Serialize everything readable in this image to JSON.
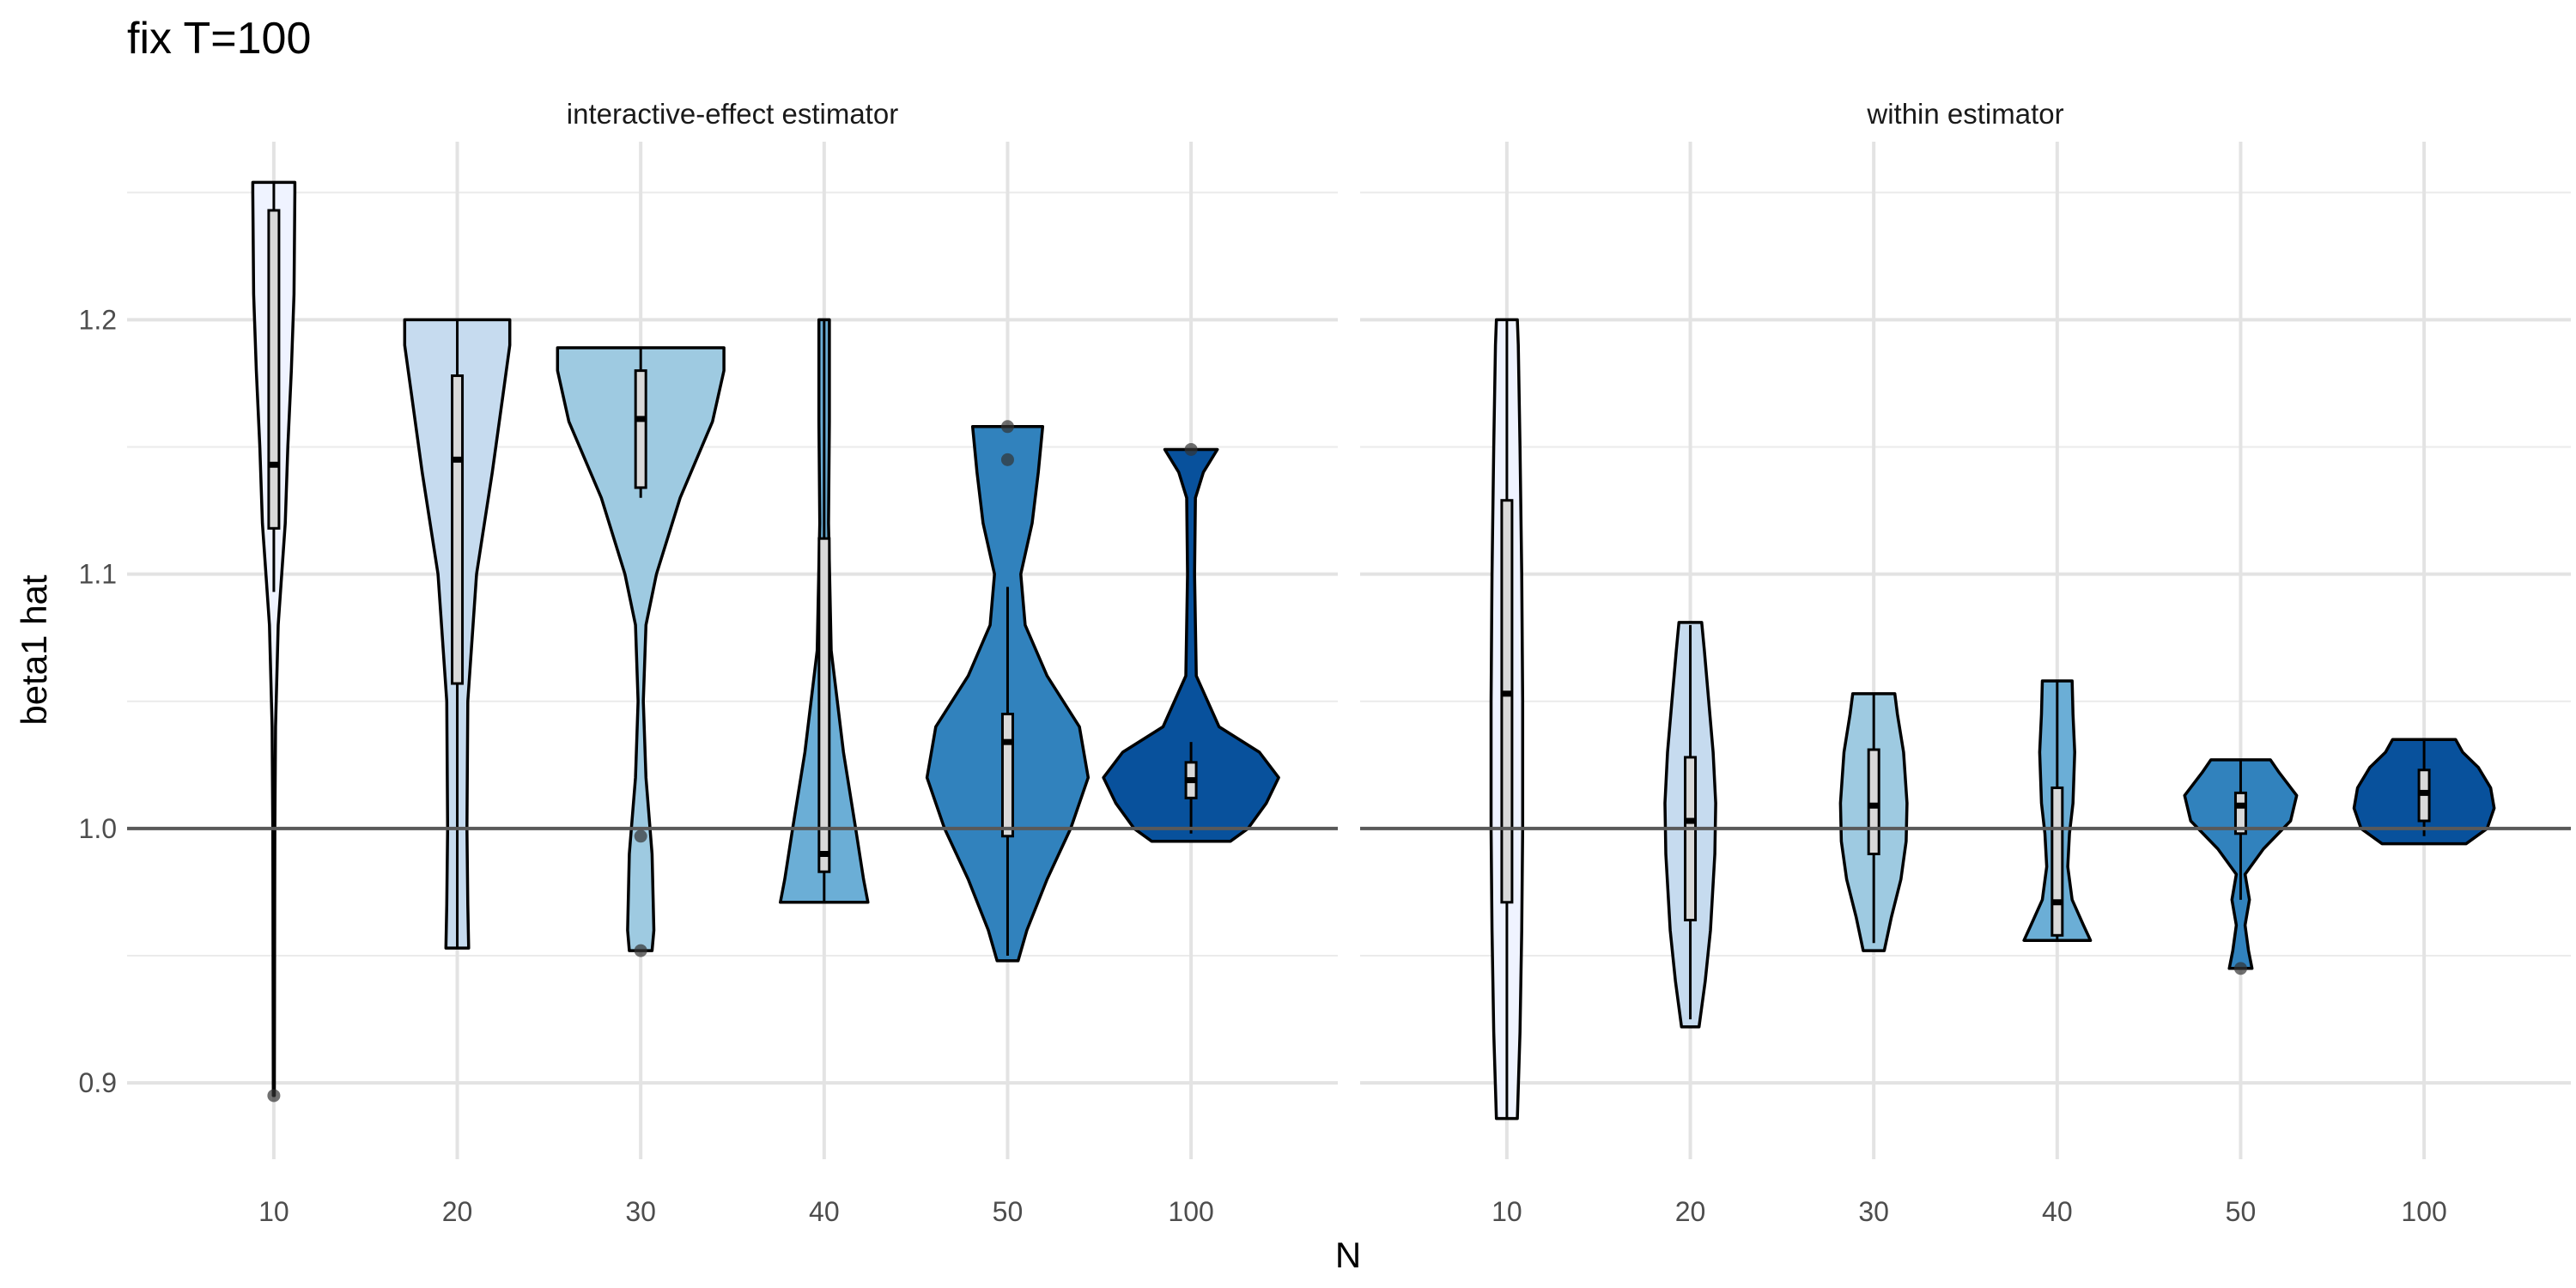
{
  "chart_data": {
    "type": "violin",
    "title": "fix T=100",
    "xlabel": "N",
    "ylabel": "beta1 hat",
    "categories": [
      "10",
      "20",
      "30",
      "40",
      "50",
      "100"
    ],
    "ylim": [
      0.87,
      1.27
    ],
    "yticks": [
      0.9,
      1.0,
      1.1,
      1.2
    ],
    "reference_line": 1.0,
    "grid": true,
    "fill_colors": [
      "#eff3ff",
      "#c6dbef",
      "#9ecae1",
      "#6baed6",
      "#3182bd",
      "#08519c"
    ],
    "panels": [
      {
        "label": "interactive-effect estimator",
        "groups": [
          {
            "N": "10",
            "min": 0.895,
            "max": 1.254,
            "q1": 1.118,
            "median": 1.143,
            "q3": 1.243,
            "whisker_low": 1.093,
            "whisker_high": 1.254,
            "outliers": [
              0.895
            ],
            "density": [
              [
                0.895,
                0.006
              ],
              [
                0.93,
                0.008
              ],
              [
                0.97,
                0.01
              ],
              [
                1.0,
                0.012
              ],
              [
                1.04,
                0.02
              ],
              [
                1.08,
                0.05
              ],
              [
                1.1,
                0.09
              ],
              [
                1.12,
                0.13
              ],
              [
                1.15,
                0.16
              ],
              [
                1.18,
                0.2
              ],
              [
                1.21,
                0.23
              ],
              [
                1.25,
                0.24
              ],
              [
                1.254,
                0.24
              ]
            ]
          },
          {
            "N": "20",
            "min": 0.953,
            "max": 1.2,
            "q1": 1.057,
            "median": 1.145,
            "q3": 1.178,
            "whisker_low": 0.953,
            "whisker_high": 1.2,
            "outliers": [],
            "density": [
              [
                0.953,
                0.13
              ],
              [
                0.97,
                0.12
              ],
              [
                1.0,
                0.11
              ],
              [
                1.05,
                0.12
              ],
              [
                1.1,
                0.22
              ],
              [
                1.14,
                0.4
              ],
              [
                1.17,
                0.52
              ],
              [
                1.19,
                0.6
              ],
              [
                1.2,
                0.6
              ]
            ]
          },
          {
            "N": "30",
            "min": 0.952,
            "max": 1.189,
            "q1": 1.134,
            "median": 1.161,
            "q3": 1.18,
            "whisker_low": 1.13,
            "whisker_high": 1.189,
            "outliers": [
              0.952,
              0.997
            ],
            "density": [
              [
                0.952,
                0.13
              ],
              [
                0.96,
                0.15
              ],
              [
                0.99,
                0.13
              ],
              [
                1.02,
                0.06
              ],
              [
                1.05,
                0.03
              ],
              [
                1.08,
                0.06
              ],
              [
                1.1,
                0.18
              ],
              [
                1.13,
                0.45
              ],
              [
                1.16,
                0.82
              ],
              [
                1.18,
                0.95
              ],
              [
                1.189,
                0.95
              ]
            ]
          },
          {
            "N": "40",
            "min": 0.971,
            "max": 1.2,
            "q1": 0.983,
            "median": 0.99,
            "q3": 1.114,
            "whisker_low": 0.971,
            "whisker_high": 1.2,
            "outliers": [],
            "density": [
              [
                0.971,
                0.5
              ],
              [
                0.98,
                0.45
              ],
              [
                1.0,
                0.36
              ],
              [
                1.03,
                0.22
              ],
              [
                1.07,
                0.08
              ],
              [
                1.12,
                0.05
              ],
              [
                1.16,
                0.06
              ],
              [
                1.19,
                0.06
              ],
              [
                1.2,
                0.06
              ]
            ]
          },
          {
            "N": "50",
            "min": 0.948,
            "max": 1.158,
            "q1": 0.997,
            "median": 1.034,
            "q3": 1.045,
            "whisker_low": 0.95,
            "whisker_high": 1.095,
            "outliers": [
              1.145,
              1.158
            ],
            "density": [
              [
                0.948,
                0.12
              ],
              [
                0.96,
                0.22
              ],
              [
                0.98,
                0.45
              ],
              [
                1.0,
                0.72
              ],
              [
                1.02,
                0.92
              ],
              [
                1.04,
                0.82
              ],
              [
                1.06,
                0.45
              ],
              [
                1.08,
                0.2
              ],
              [
                1.1,
                0.15
              ],
              [
                1.12,
                0.28
              ],
              [
                1.14,
                0.35
              ],
              [
                1.158,
                0.4
              ]
            ]
          },
          {
            "N": "100",
            "min": 0.995,
            "max": 1.149,
            "q1": 1.012,
            "median": 1.019,
            "q3": 1.026,
            "whisker_low": 0.998,
            "whisker_high": 1.034,
            "outliers": [
              1.149
            ],
            "density": [
              [
                0.995,
                0.45
              ],
              [
                1.0,
                0.65
              ],
              [
                1.01,
                0.86
              ],
              [
                1.02,
                1.0
              ],
              [
                1.03,
                0.78
              ],
              [
                1.04,
                0.32
              ],
              [
                1.06,
                0.06
              ],
              [
                1.1,
                0.04
              ],
              [
                1.13,
                0.05
              ],
              [
                1.14,
                0.14
              ],
              [
                1.149,
                0.3
              ]
            ]
          }
        ]
      },
      {
        "label": "within estimator",
        "groups": [
          {
            "N": "10",
            "min": 0.886,
            "max": 1.2,
            "q1": 0.971,
            "median": 1.053,
            "q3": 1.129,
            "whisker_low": 0.886,
            "whisker_high": 1.2,
            "outliers": [],
            "density": [
              [
                0.886,
                0.12
              ],
              [
                0.92,
                0.15
              ],
              [
                0.96,
                0.17
              ],
              [
                1.0,
                0.18
              ],
              [
                1.05,
                0.18
              ],
              [
                1.1,
                0.17
              ],
              [
                1.15,
                0.15
              ],
              [
                1.19,
                0.13
              ],
              [
                1.2,
                0.12
              ]
            ]
          },
          {
            "N": "20",
            "min": 0.922,
            "max": 1.081,
            "q1": 0.964,
            "median": 1.003,
            "q3": 1.028,
            "whisker_low": 0.925,
            "whisker_high": 1.08,
            "outliers": [],
            "density": [
              [
                0.922,
                0.1
              ],
              [
                0.94,
                0.17
              ],
              [
                0.96,
                0.23
              ],
              [
                0.99,
                0.28
              ],
              [
                1.01,
                0.29
              ],
              [
                1.03,
                0.26
              ],
              [
                1.05,
                0.21
              ],
              [
                1.07,
                0.16
              ],
              [
                1.081,
                0.13
              ]
            ]
          },
          {
            "N": "30",
            "min": 0.952,
            "max": 1.053,
            "q1": 0.99,
            "median": 1.009,
            "q3": 1.031,
            "whisker_low": 0.955,
            "whisker_high": 1.053,
            "outliers": [],
            "density": [
              [
                0.952,
                0.12
              ],
              [
                0.965,
                0.2
              ],
              [
                0.98,
                0.31
              ],
              [
                0.995,
                0.37
              ],
              [
                1.01,
                0.38
              ],
              [
                1.03,
                0.34
              ],
              [
                1.045,
                0.27
              ],
              [
                1.053,
                0.24
              ]
            ]
          },
          {
            "N": "40",
            "min": 0.956,
            "max": 1.058,
            "q1": 0.958,
            "median": 0.971,
            "q3": 1.016,
            "whisker_low": 0.956,
            "whisker_high": 1.058,
            "outliers": [],
            "density": [
              [
                0.956,
                0.38
              ],
              [
                0.962,
                0.3
              ],
              [
                0.972,
                0.17
              ],
              [
                0.985,
                0.12
              ],
              [
                0.998,
                0.14
              ],
              [
                1.01,
                0.18
              ],
              [
                1.03,
                0.2
              ],
              [
                1.045,
                0.18
              ],
              [
                1.058,
                0.17
              ]
            ]
          },
          {
            "N": "50",
            "min": 0.945,
            "max": 1.027,
            "q1": 0.998,
            "median": 1.009,
            "q3": 1.014,
            "whisker_low": 0.972,
            "whisker_high": 1.027,
            "outliers": [
              0.945
            ],
            "density": [
              [
                0.945,
                0.13
              ],
              [
                0.952,
                0.09
              ],
              [
                0.962,
                0.05
              ],
              [
                0.972,
                0.1
              ],
              [
                0.982,
                0.05
              ],
              [
                0.992,
                0.26
              ],
              [
                1.003,
                0.57
              ],
              [
                1.013,
                0.64
              ],
              [
                1.022,
                0.44
              ],
              [
                1.027,
                0.34
              ]
            ]
          },
          {
            "N": "100",
            "min": 0.994,
            "max": 1.035,
            "q1": 1.003,
            "median": 1.014,
            "q3": 1.023,
            "whisker_low": 0.997,
            "whisker_high": 1.035,
            "outliers": [],
            "density": [
              [
                0.994,
                0.48
              ],
              [
                1.0,
                0.72
              ],
              [
                1.008,
                0.8
              ],
              [
                1.016,
                0.76
              ],
              [
                1.024,
                0.62
              ],
              [
                1.03,
                0.44
              ],
              [
                1.035,
                0.36
              ]
            ]
          }
        ]
      }
    ]
  }
}
